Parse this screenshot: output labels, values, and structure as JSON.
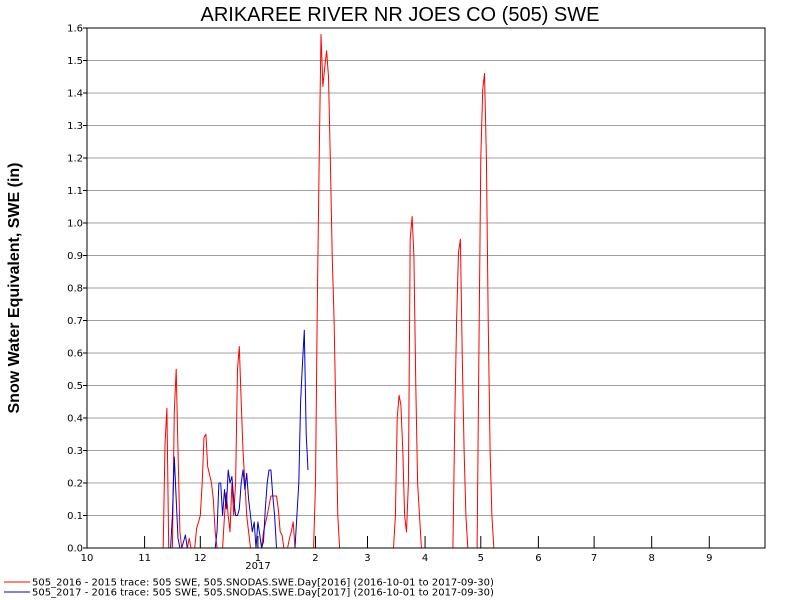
{
  "chart_data": {
    "type": "line",
    "title": "ARIKAREE RIVER NR JOES CO (505) SWE",
    "ylabel": "Snow Water Equivalent, SWE (in)",
    "xlabel": "",
    "ylim": [
      0,
      1.6
    ],
    "yticks": [
      "0.0",
      "0.1",
      "0.2",
      "0.3",
      "0.4",
      "0.5",
      "0.6",
      "0.7",
      "0.8",
      "0.9",
      "1.0",
      "1.1",
      "1.2",
      "1.3",
      "1.4",
      "1.5",
      "1.6"
    ],
    "xlim": [
      "2016-10-01",
      "2017-09-30"
    ],
    "xticks": [
      {
        "date": "2016-10-01",
        "label": "10"
      },
      {
        "date": "2016-11-01",
        "label": "11"
      },
      {
        "date": "2016-12-01",
        "label": "12"
      },
      {
        "date": "2017-01-01",
        "label": "1"
      },
      {
        "date": "2017-02-01",
        "label": "2"
      },
      {
        "date": "2017-03-01",
        "label": "3"
      },
      {
        "date": "2017-04-01",
        "label": "4"
      },
      {
        "date": "2017-05-01",
        "label": "5"
      },
      {
        "date": "2017-06-01",
        "label": "6"
      },
      {
        "date": "2017-07-01",
        "label": "7"
      },
      {
        "date": "2017-08-01",
        "label": "8"
      },
      {
        "date": "2017-09-01",
        "label": "9"
      }
    ],
    "year_label": "2017",
    "grid": true,
    "legend_position": "bottom-left",
    "series": [
      {
        "name": "505_2016 - 2015 trace: 505 SWE, 505.SNODAS.SWE.Day[2016] (2016-10-01 to 2017-09-30)",
        "color": "#ff0000",
        "points": [
          [
            "2016-11-11",
            0
          ],
          [
            "2016-11-12",
            0.32
          ],
          [
            "2016-11-13",
            0.43
          ],
          [
            "2016-11-14",
            0
          ],
          [
            "2016-11-16",
            0
          ],
          [
            "2016-11-17",
            0.42
          ],
          [
            "2016-11-18",
            0.55
          ],
          [
            "2016-11-19",
            0.3
          ],
          [
            "2016-11-20",
            0.05
          ],
          [
            "2016-11-21",
            0
          ],
          [
            "2016-11-24",
            0
          ],
          [
            "2016-11-25",
            0.03
          ],
          [
            "2016-11-26",
            0
          ],
          [
            "2016-11-28",
            0
          ],
          [
            "2016-11-29",
            0.06
          ],
          [
            "2016-11-30",
            0.08
          ],
          [
            "2016-12-01",
            0.1
          ],
          [
            "2016-12-02",
            0.2
          ],
          [
            "2016-12-03",
            0.34
          ],
          [
            "2016-12-04",
            0.35
          ],
          [
            "2016-12-05",
            0.25
          ],
          [
            "2016-12-07",
            0.2
          ],
          [
            "2016-12-08",
            0.15
          ],
          [
            "2016-12-09",
            0.05
          ],
          [
            "2016-12-10",
            0
          ],
          [
            "2016-12-13",
            0
          ],
          [
            "2016-12-14",
            0.1
          ],
          [
            "2016-12-15",
            0.17
          ],
          [
            "2016-12-16",
            0.1
          ],
          [
            "2016-12-17",
            0.05
          ],
          [
            "2016-12-18",
            0.2
          ],
          [
            "2016-12-19",
            0.1
          ],
          [
            "2016-12-20",
            0.2
          ],
          [
            "2016-12-21",
            0.55
          ],
          [
            "2016-12-22",
            0.62
          ],
          [
            "2016-12-23",
            0.45
          ],
          [
            "2016-12-24",
            0.3
          ],
          [
            "2016-12-25",
            0.2
          ],
          [
            "2016-12-26",
            0.1
          ],
          [
            "2016-12-27",
            0.05
          ],
          [
            "2016-12-28",
            0
          ],
          [
            "2017-01-03",
            0
          ],
          [
            "2017-01-04",
            0.05
          ],
          [
            "2017-01-06",
            0.1
          ],
          [
            "2017-01-08",
            0.16
          ],
          [
            "2017-01-11",
            0.16
          ],
          [
            "2017-01-12",
            0.12
          ],
          [
            "2017-01-13",
            0.05
          ],
          [
            "2017-01-14",
            0.04
          ],
          [
            "2017-01-15",
            0
          ],
          [
            "2017-01-17",
            0
          ],
          [
            "2017-01-18",
            0.03
          ],
          [
            "2017-01-19",
            0.05
          ],
          [
            "2017-01-20",
            0.08
          ],
          [
            "2017-01-21",
            0
          ],
          [
            "2017-01-31",
            0
          ],
          [
            "2017-02-01",
            0.2
          ],
          [
            "2017-02-02",
            0.75
          ],
          [
            "2017-02-03",
            1.2
          ],
          [
            "2017-02-04",
            1.58
          ],
          [
            "2017-02-05",
            1.42
          ],
          [
            "2017-02-06",
            1.48
          ],
          [
            "2017-02-07",
            1.53
          ],
          [
            "2017-02-08",
            1.45
          ],
          [
            "2017-02-09",
            1.2
          ],
          [
            "2017-02-10",
            0.9
          ],
          [
            "2017-02-11",
            0.7
          ],
          [
            "2017-02-12",
            0.4
          ],
          [
            "2017-02-13",
            0.1
          ],
          [
            "2017-02-14",
            0
          ],
          [
            "2017-03-15",
            0
          ],
          [
            "2017-03-16",
            0.1
          ],
          [
            "2017-03-17",
            0.4
          ],
          [
            "2017-03-18",
            0.47
          ],
          [
            "2017-03-19",
            0.44
          ],
          [
            "2017-03-20",
            0.3
          ],
          [
            "2017-03-21",
            0.1
          ],
          [
            "2017-03-22",
            0.05
          ],
          [
            "2017-03-23",
            0.2
          ],
          [
            "2017-03-24",
            0.95
          ],
          [
            "2017-03-25",
            1.02
          ],
          [
            "2017-03-26",
            0.9
          ],
          [
            "2017-03-27",
            0.5
          ],
          [
            "2017-03-28",
            0.2
          ],
          [
            "2017-03-29",
            0.1
          ],
          [
            "2017-03-30",
            0
          ],
          [
            "2017-04-16",
            0
          ],
          [
            "2017-04-17",
            0.4
          ],
          [
            "2017-04-18",
            0.7
          ],
          [
            "2017-04-19",
            0.91
          ],
          [
            "2017-04-20",
            0.95
          ],
          [
            "2017-04-21",
            0.6
          ],
          [
            "2017-04-22",
            0.3
          ],
          [
            "2017-04-23",
            0.1
          ],
          [
            "2017-04-24",
            0
          ],
          [
            "2017-04-29",
            0
          ],
          [
            "2017-04-30",
            0.6
          ],
          [
            "2017-05-01",
            1.2
          ],
          [
            "2017-05-02",
            1.41
          ],
          [
            "2017-05-03",
            1.46
          ],
          [
            "2017-05-04",
            1.2
          ],
          [
            "2017-05-05",
            0.7
          ],
          [
            "2017-05-06",
            0.3
          ],
          [
            "2017-05-07",
            0.1
          ],
          [
            "2017-05-08",
            0
          ]
        ]
      },
      {
        "name": "505_2017 - 2016 trace: 505 SWE, 505.SNODAS.SWE.Day[2017] (2016-10-01 to 2017-09-30)",
        "color": "#0000cc",
        "points": [
          [
            "2016-11-15",
            0
          ],
          [
            "2016-11-16",
            0.1
          ],
          [
            "2016-11-17",
            0.28
          ],
          [
            "2016-11-18",
            0.15
          ],
          [
            "2016-11-19",
            0.03
          ],
          [
            "2016-11-20",
            0
          ],
          [
            "2016-11-21",
            0
          ],
          [
            "2016-11-22",
            0.02
          ],
          [
            "2016-11-23",
            0.04
          ],
          [
            "2016-11-24",
            0
          ],
          [
            "2016-12-09",
            0
          ],
          [
            "2016-12-10",
            0.05
          ],
          [
            "2016-12-11",
            0.2
          ],
          [
            "2016-12-12",
            0.2
          ],
          [
            "2016-12-13",
            0.1
          ],
          [
            "2016-12-14",
            0.18
          ],
          [
            "2016-12-15",
            0.12
          ],
          [
            "2016-12-16",
            0.24
          ],
          [
            "2016-12-17",
            0.2
          ],
          [
            "2016-12-18",
            0.22
          ],
          [
            "2016-12-19",
            0.15
          ],
          [
            "2016-12-20",
            0.1
          ],
          [
            "2016-12-21",
            0.1
          ],
          [
            "2016-12-22",
            0.12
          ],
          [
            "2016-12-23",
            0.2
          ],
          [
            "2016-12-24",
            0.24
          ],
          [
            "2016-12-25",
            0.18
          ],
          [
            "2016-12-26",
            0.23
          ],
          [
            "2016-12-27",
            0.15
          ],
          [
            "2016-12-28",
            0.1
          ],
          [
            "2016-12-29",
            0.05
          ],
          [
            "2016-12-30",
            0.08
          ],
          [
            "2016-12-31",
            0
          ],
          [
            "2017-01-01",
            0.08
          ],
          [
            "2017-01-02",
            0.04
          ],
          [
            "2017-01-03",
            0
          ],
          [
            "2017-01-03",
            0
          ],
          [
            "2017-01-04",
            0.02
          ],
          [
            "2017-01-05",
            0.12
          ],
          [
            "2017-01-06",
            0.2
          ],
          [
            "2017-01-07",
            0.24
          ],
          [
            "2017-01-08",
            0.24
          ],
          [
            "2017-01-09",
            0.16
          ],
          [
            "2017-01-10",
            0.1
          ],
          [
            "2017-01-11",
            0
          ],
          [
            "2017-01-21",
            0
          ],
          [
            "2017-01-22",
            0.1
          ],
          [
            "2017-01-23",
            0.2
          ],
          [
            "2017-01-24",
            0.45
          ],
          [
            "2017-01-25",
            0.57
          ],
          [
            "2017-01-26",
            0.67
          ],
          [
            "2017-01-27",
            0.35
          ],
          [
            "2017-01-28",
            0.24
          ]
        ]
      }
    ]
  }
}
